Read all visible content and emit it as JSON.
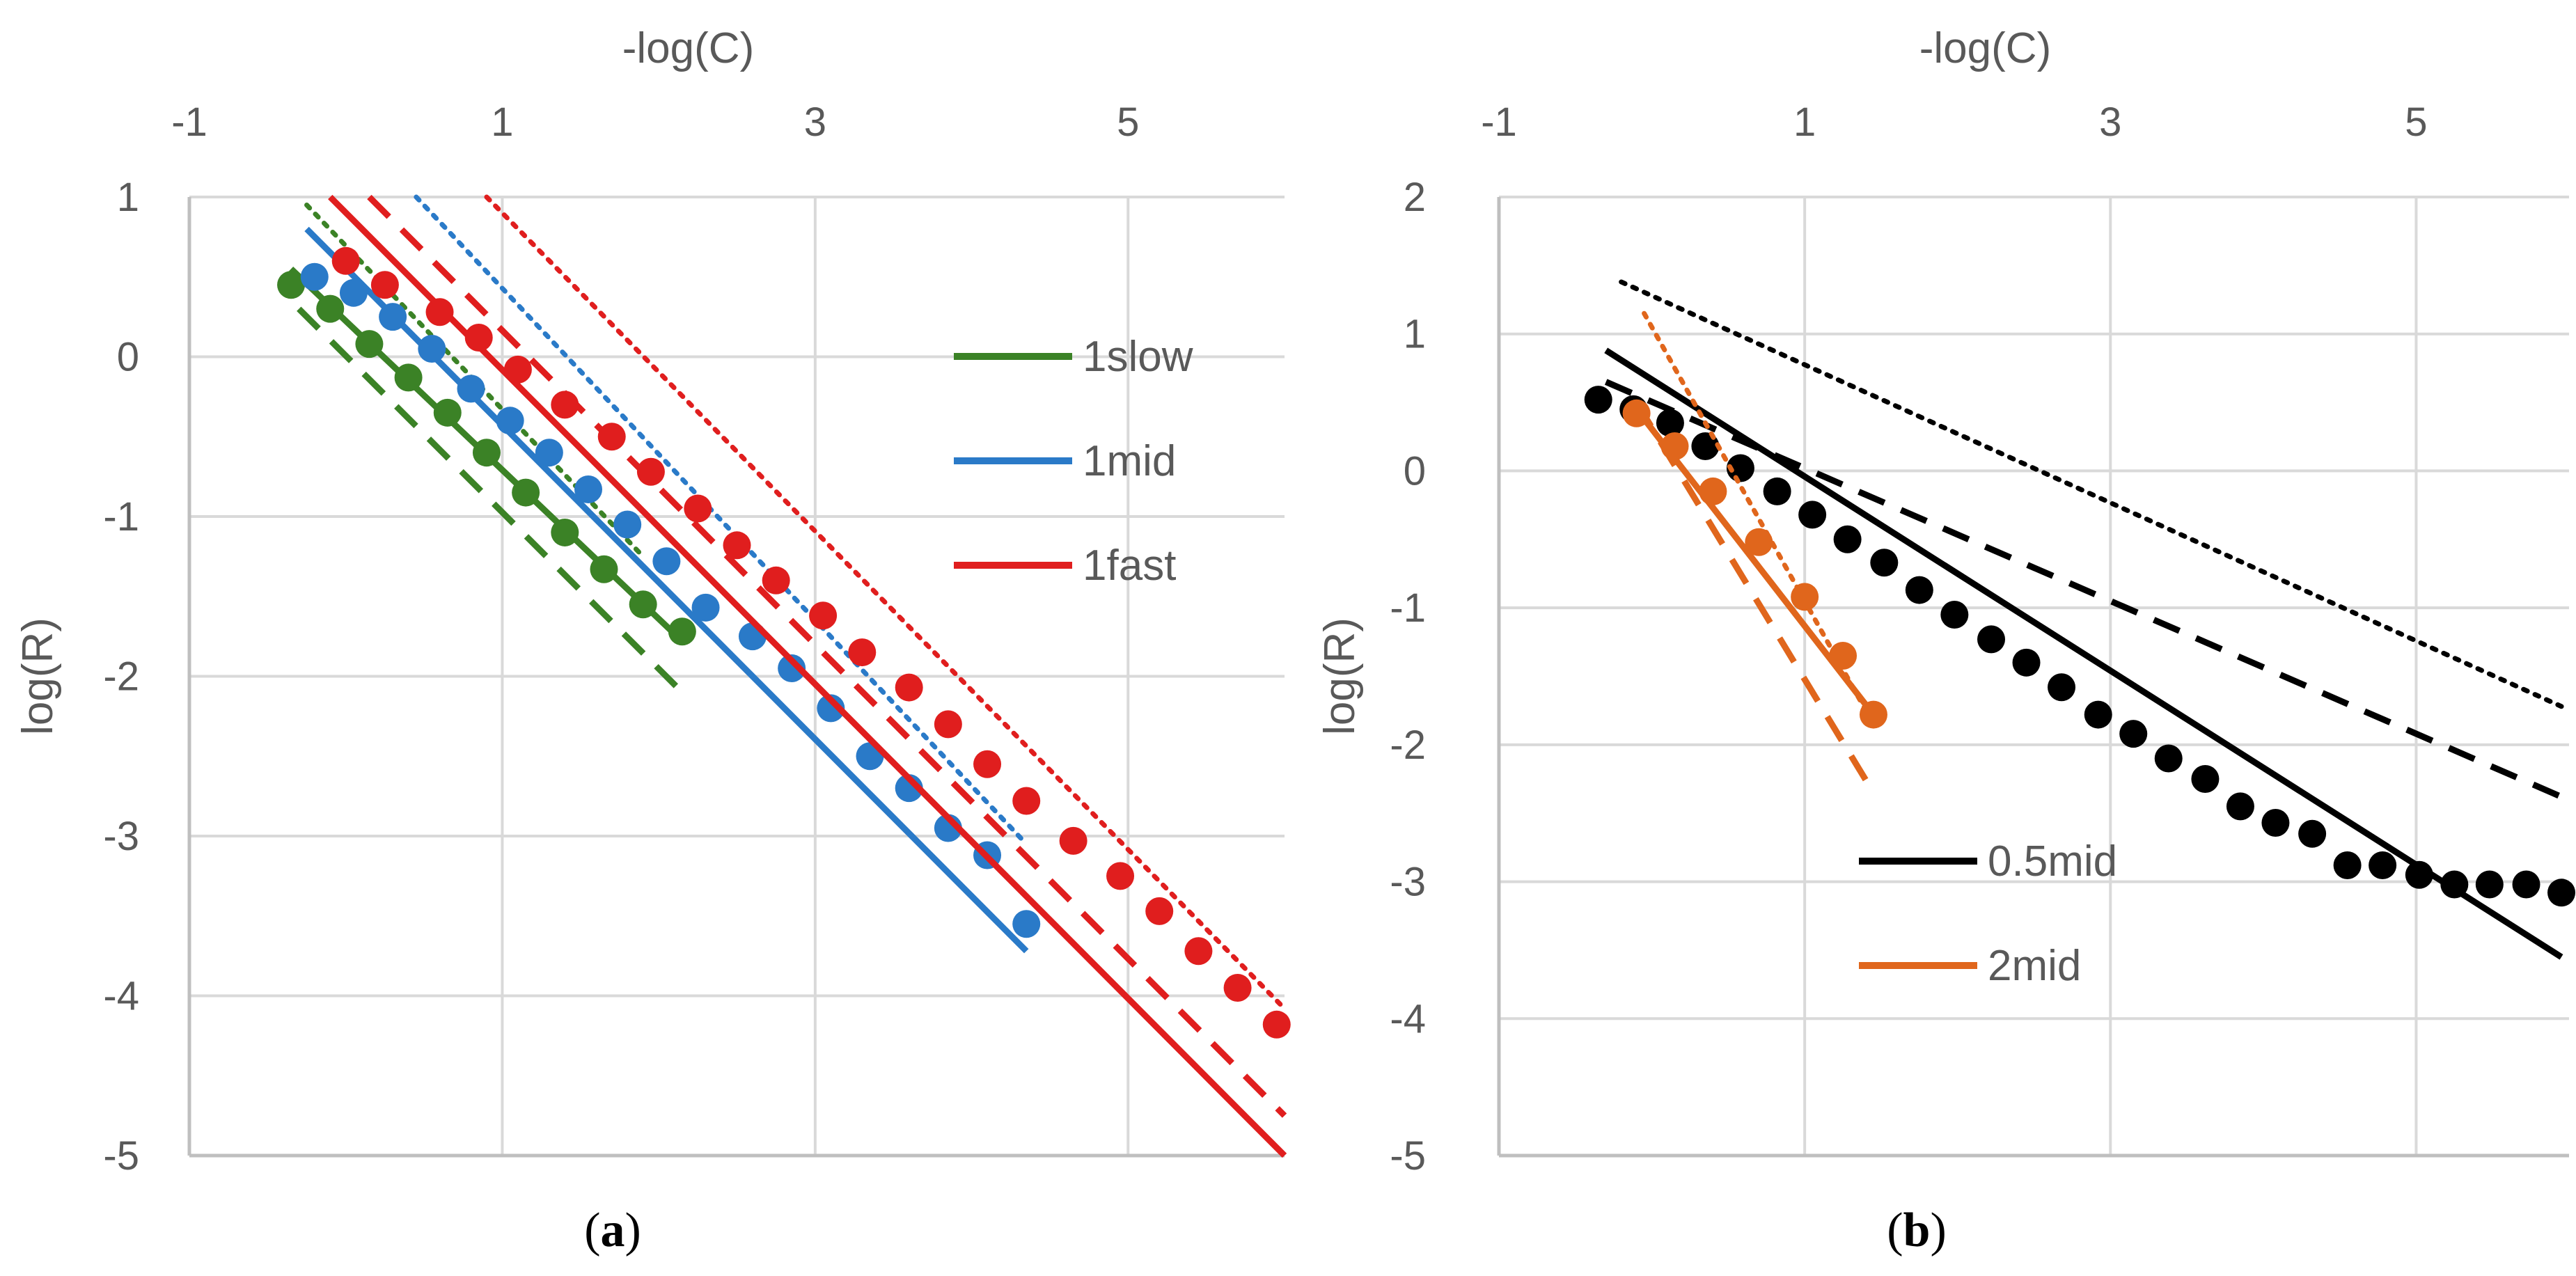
{
  "colors": {
    "1slow": "#3b8226",
    "1mid": "#2a7ac8",
    "1fast": "#e01e1e",
    "0.5mid": "#000000",
    "2mid": "#e0661c"
  },
  "chart_data": [
    {
      "type": "scatter",
      "panel": "(a)",
      "caption_letter": "a",
      "xlabel": "-log(C)",
      "ylabel": "log(R)",
      "xlim": [
        -1,
        6
      ],
      "ylim": [
        -5,
        1
      ],
      "x_ticks": [
        -1,
        1,
        3,
        5
      ],
      "y_ticks": [
        1,
        0,
        -1,
        -2,
        -3,
        -4,
        -5
      ],
      "x_axis_position": "top",
      "grid": true,
      "legend_position": "top-right",
      "legend": [
        "1slow",
        "1mid",
        "1fast"
      ],
      "series": [
        {
          "name": "1slow",
          "markers": {
            "x": [
              -0.35,
              -0.1,
              0.15,
              0.4,
              0.65,
              0.9,
              1.15,
              1.4,
              1.65,
              1.9,
              2.15
            ],
            "y": [
              0.45,
              0.3,
              0.08,
              -0.13,
              -0.35,
              -0.6,
              -0.85,
              -1.1,
              -1.33,
              -1.55,
              -1.72
            ]
          },
          "fit_solid": {
            "x": [
              -0.35,
              2.15
            ],
            "y": [
              0.55,
              -1.78
            ]
          },
          "fit_dashed": {
            "x": [
              -0.3,
              2.15
            ],
            "y": [
              0.3,
              -2.1
            ]
          },
          "fit_dotted": {
            "x": [
              -0.25,
              1.9
            ],
            "y": [
              0.95,
              -1.25
            ]
          }
        },
        {
          "name": "1mid",
          "markers": {
            "x": [
              -0.2,
              0.05,
              0.3,
              0.55,
              0.8,
              1.05,
              1.3,
              1.55,
              1.8,
              2.05,
              2.3,
              2.6,
              2.85,
              3.1,
              3.35,
              3.6,
              3.85,
              4.1,
              4.35
            ],
            "y": [
              0.5,
              0.4,
              0.25,
              0.05,
              -0.2,
              -0.4,
              -0.6,
              -0.83,
              -1.05,
              -1.28,
              -1.57,
              -1.75,
              -1.95,
              -2.2,
              -2.5,
              -2.7,
              -2.95,
              -3.12,
              -3.55
            ]
          },
          "fit_solid": {
            "x": [
              -0.25,
              4.35
            ],
            "y": [
              0.8,
              -3.72
            ]
          },
          "fit_dotted": {
            "x": [
              0.45,
              4.35
            ],
            "y": [
              1.0,
              -3.05
            ]
          }
        },
        {
          "name": "1fast",
          "markers": {
            "x": [
              0.0,
              0.25,
              0.6,
              0.85,
              1.1,
              1.4,
              1.7,
              1.95,
              2.25,
              2.5,
              2.75,
              3.05,
              3.3,
              3.6,
              3.85,
              4.1,
              4.35,
              4.65,
              4.95,
              5.2,
              5.45,
              5.7,
              5.95
            ],
            "y": [
              0.6,
              0.45,
              0.28,
              0.12,
              -0.08,
              -0.3,
              -0.5,
              -0.72,
              -0.95,
              -1.18,
              -1.4,
              -1.62,
              -1.85,
              -2.07,
              -2.3,
              -2.55,
              -2.78,
              -3.03,
              -3.25,
              -3.47,
              -3.72,
              -3.95,
              -4.18
            ]
          },
          "fit_solid": {
            "x": [
              -0.1,
              6.0
            ],
            "y": [
              1.0,
              -5.0
            ]
          },
          "fit_dashed": {
            "x": [
              0.15,
              6.0
            ],
            "y": [
              1.0,
              -4.75
            ]
          },
          "fit_dotted": {
            "x": [
              0.9,
              6.0
            ],
            "y": [
              1.0,
              -4.08
            ]
          }
        }
      ]
    },
    {
      "type": "scatter",
      "panel": "(b)",
      "caption_letter": "b",
      "xlabel": "-log(C)",
      "ylabel": "log(R)",
      "xlim": [
        -1,
        6
      ],
      "ylim": [
        -5,
        2
      ],
      "x_ticks": [
        -1,
        1,
        3,
        5
      ],
      "y_ticks": [
        2,
        1,
        0,
        -1,
        -2,
        -3,
        -4,
        -5
      ],
      "x_axis_position": "top",
      "grid": true,
      "legend_position": "bottom-center",
      "legend": [
        "0.5mid",
        "2mid"
      ],
      "series": [
        {
          "name": "0.5mid",
          "markers": {
            "x": [
              -0.35,
              -0.12,
              0.12,
              0.35,
              0.58,
              0.82,
              1.05,
              1.28,
              1.52,
              1.75,
              1.98,
              2.22,
              2.45,
              2.68,
              2.92,
              3.15,
              3.38,
              3.62,
              3.85,
              4.08,
              4.32,
              4.55,
              4.78,
              5.02,
              5.25,
              5.48,
              5.72,
              5.95
            ],
            "y": [
              0.52,
              0.45,
              0.35,
              0.18,
              0.02,
              -0.15,
              -0.32,
              -0.5,
              -0.67,
              -0.87,
              -1.05,
              -1.23,
              -1.4,
              -1.58,
              -1.78,
              -1.92,
              -2.1,
              -2.25,
              -2.45,
              -2.57,
              -2.65,
              -2.88,
              -2.88,
              -2.95,
              -3.02,
              -3.02,
              -3.02,
              -3.08
            ]
          },
          "fit_solid": {
            "x": [
              -0.3,
              5.95
            ],
            "y": [
              0.88,
              -3.55
            ]
          },
          "fit_dashed": {
            "x": [
              -0.3,
              5.95
            ],
            "y": [
              0.65,
              -2.38
            ]
          },
          "fit_dotted": {
            "x": [
              -0.2,
              5.95
            ],
            "y": [
              1.38,
              -1.72
            ]
          }
        },
        {
          "name": "2mid",
          "markers": {
            "x": [
              -0.1,
              0.15,
              0.4,
              0.7,
              1.0,
              1.25,
              1.45
            ],
            "y": [
              0.42,
              0.18,
              -0.15,
              -0.52,
              -0.92,
              -1.35,
              -1.78
            ]
          },
          "fit_solid": {
            "x": [
              -0.1,
              1.45
            ],
            "y": [
              0.45,
              -1.78
            ]
          },
          "fit_dashed": {
            "x": [
              -0.1,
              1.45
            ],
            "y": [
              0.5,
              -2.35
            ]
          },
          "fit_dotted": {
            "x": [
              -0.05,
              1.45
            ],
            "y": [
              1.15,
              -1.85
            ]
          }
        }
      ]
    }
  ]
}
